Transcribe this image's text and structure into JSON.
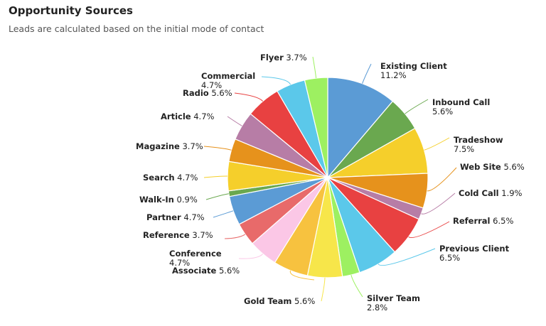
{
  "header": {
    "title": "Opportunity Sources",
    "subtitle": "Leads are calculated based on the initial mode of contact"
  },
  "chart_data": {
    "type": "pie",
    "title": "Opportunity Sources",
    "subtitle": "Leads are calculated based on the initial mode of contact",
    "unit": "%",
    "slices": [
      {
        "name": "Existing Client",
        "value": 11.2,
        "label": "11.2%",
        "color": "#5b9bd5"
      },
      {
        "name": "Inbound Call",
        "value": 5.6,
        "label": "5.6%",
        "color": "#6aa84f"
      },
      {
        "name": "Tradeshow",
        "value": 7.5,
        "label": "7.5%",
        "color": "#f5cf2b"
      },
      {
        "name": "Web Site",
        "value": 5.6,
        "label": "5.6%",
        "color": "#e6921c"
      },
      {
        "name": "Cold Call",
        "value": 1.9,
        "label": "1.9%",
        "color": "#b77da6"
      },
      {
        "name": "Referral",
        "value": 6.5,
        "label": "6.5%",
        "color": "#e84141"
      },
      {
        "name": "Previous Client",
        "value": 6.5,
        "label": "6.5%",
        "color": "#5bc8ea"
      },
      {
        "name": "Silver Team",
        "value": 2.8,
        "label": "2.8%",
        "color": "#9df061"
      },
      {
        "name": "Gold Team",
        "value": 5.6,
        "label": "5.6%",
        "color": "#f7e64a"
      },
      {
        "name": "Associate",
        "value": 5.6,
        "label": "5.6%",
        "color": "#f7c23f"
      },
      {
        "name": "Conference",
        "value": 4.7,
        "label": "4.7%",
        "color": "#fbc7e6"
      },
      {
        "name": "Reference",
        "value": 3.7,
        "label": "3.7%",
        "color": "#e86a6a"
      },
      {
        "name": "Partner",
        "value": 4.7,
        "label": "4.7%",
        "color": "#5b9bd5"
      },
      {
        "name": "Walk-In",
        "value": 0.9,
        "label": "0.9%",
        "color": "#6aa84f"
      },
      {
        "name": "Search",
        "value": 4.7,
        "label": "4.7%",
        "color": "#f5cf2b"
      },
      {
        "name": "Magazine",
        "value": 3.7,
        "label": "3.7%",
        "color": "#e6921c"
      },
      {
        "name": "Article",
        "value": 4.7,
        "label": "4.7%",
        "color": "#b77da6"
      },
      {
        "name": "Radio",
        "value": 5.6,
        "label": "5.6%",
        "color": "#e84141"
      },
      {
        "name": "Commercial",
        "value": 4.7,
        "label": "4.7%",
        "color": "#5bc8ea"
      },
      {
        "name": "Flyer",
        "value": 3.7,
        "label": "3.7%",
        "color": "#9df061"
      }
    ]
  }
}
